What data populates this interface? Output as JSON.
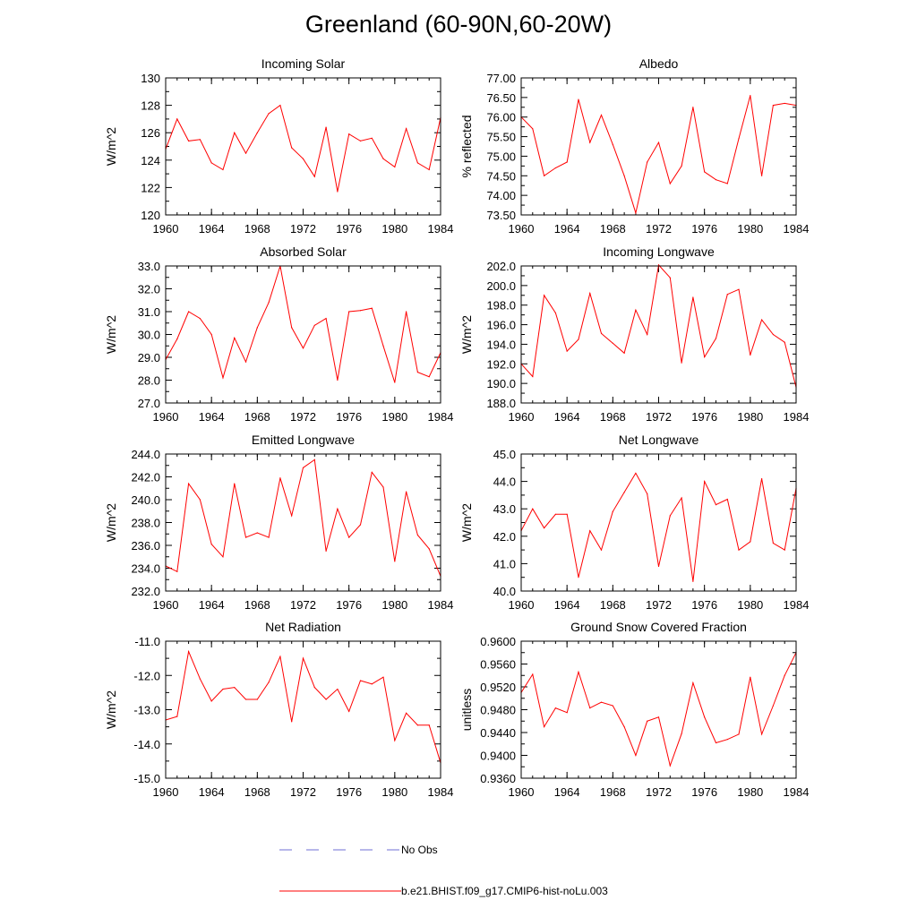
{
  "title": "Greenland (60-90N,60-20W)",
  "x_years": [
    1960,
    1961,
    1962,
    1963,
    1964,
    1965,
    1966,
    1967,
    1968,
    1969,
    1970,
    1971,
    1972,
    1973,
    1974,
    1975,
    1976,
    1977,
    1978,
    1979,
    1980,
    1981,
    1982,
    1983,
    1984
  ],
  "legend": {
    "obs_label": "No Obs",
    "model_label": "b.e21.BHIST.f09_g17.CMIP6-hist-noLu.003",
    "obs_color": "#6f6fd6",
    "model_color": "#ff0000"
  },
  "chart_data": [
    {
      "type": "line",
      "title": "Incoming Solar",
      "ylabel": "W/m^2",
      "ylim": [
        120,
        130
      ],
      "yticks": [
        "120",
        "122",
        "124",
        "126",
        "128",
        "130"
      ],
      "xticks": [
        "1960",
        "1964",
        "1968",
        "1972",
        "1976",
        "1980",
        "1984"
      ],
      "series": [
        {
          "values": [
            124.8,
            127.0,
            125.4,
            125.5,
            123.8,
            123.3,
            126.0,
            124.5,
            126.0,
            127.4,
            128.0,
            124.9,
            124.1,
            122.8,
            126.4,
            121.7,
            125.9,
            125.4,
            125.6,
            124.1,
            123.5,
            126.3,
            123.8,
            123.3,
            127.1
          ]
        }
      ]
    },
    {
      "type": "line",
      "title": "Albedo",
      "ylabel": "% reflected",
      "ylim": [
        73.5,
        77.0
      ],
      "yticks": [
        "73.50",
        "74.00",
        "74.50",
        "75.00",
        "75.50",
        "76.00",
        "76.50",
        "77.00"
      ],
      "xticks": [
        "1960",
        "1964",
        "1968",
        "1972",
        "1976",
        "1980",
        "1984"
      ],
      "series": [
        {
          "values": [
            76.0,
            75.7,
            74.5,
            74.7,
            74.85,
            76.45,
            75.35,
            76.05,
            75.3,
            74.5,
            73.55,
            74.85,
            75.35,
            74.3,
            74.75,
            76.25,
            74.6,
            74.4,
            74.3,
            75.45,
            76.55,
            74.5,
            76.3,
            76.35,
            76.3
          ]
        }
      ]
    },
    {
      "type": "line",
      "title": "Absorbed Solar",
      "ylabel": "W/m^2",
      "ylim": [
        27.0,
        33.0
      ],
      "yticks": [
        "27.0",
        "28.0",
        "29.0",
        "30.0",
        "31.0",
        "32.0",
        "33.0"
      ],
      "xticks": [
        "1960",
        "1964",
        "1968",
        "1972",
        "1976",
        "1980",
        "1984"
      ],
      "series": [
        {
          "values": [
            28.9,
            29.8,
            31.0,
            30.7,
            30.0,
            28.1,
            29.85,
            28.8,
            30.3,
            31.4,
            33.0,
            30.3,
            29.4,
            30.4,
            30.7,
            28.0,
            31.0,
            31.05,
            31.15,
            29.5,
            27.9,
            31.0,
            28.35,
            28.15,
            29.2
          ]
        }
      ]
    },
    {
      "type": "line",
      "title": "Incoming Longwave",
      "ylabel": "W/m^2",
      "ylim": [
        188.0,
        202.0
      ],
      "yticks": [
        "188.0",
        "190.0",
        "192.0",
        "194.0",
        "196.0",
        "198.0",
        "200.0",
        "202.0"
      ],
      "xticks": [
        "1960",
        "1964",
        "1968",
        "1972",
        "1976",
        "1980",
        "1984"
      ],
      "series": [
        {
          "values": [
            192.0,
            190.7,
            199.0,
            197.2,
            193.3,
            194.5,
            199.2,
            195.1,
            194.1,
            193.1,
            197.5,
            195.0,
            202.1,
            200.8,
            192.1,
            198.8,
            192.7,
            194.6,
            199.1,
            199.6,
            192.9,
            196.5,
            195.0,
            194.2,
            189.6
          ]
        }
      ]
    },
    {
      "type": "line",
      "title": "Emitted Longwave",
      "ylabel": "W/m^2",
      "ylim": [
        232.0,
        244.0
      ],
      "yticks": [
        "232.0",
        "234.0",
        "236.0",
        "238.0",
        "240.0",
        "242.0",
        "244.0"
      ],
      "xticks": [
        "1960",
        "1964",
        "1968",
        "1972",
        "1976",
        "1980",
        "1984"
      ],
      "series": [
        {
          "values": [
            234.2,
            233.7,
            241.4,
            240.0,
            236.1,
            235.0,
            241.4,
            236.7,
            237.1,
            236.7,
            241.9,
            238.6,
            242.8,
            243.5,
            235.5,
            239.2,
            236.7,
            237.8,
            242.4,
            241.1,
            234.6,
            240.7,
            236.9,
            235.7,
            233.3
          ]
        }
      ]
    },
    {
      "type": "line",
      "title": "Net Longwave",
      "ylabel": "W/m^2",
      "ylim": [
        40.0,
        45.0
      ],
      "yticks": [
        "40.0",
        "41.0",
        "42.0",
        "43.0",
        "44.0",
        "45.0"
      ],
      "xticks": [
        "1960",
        "1964",
        "1968",
        "1972",
        "1976",
        "1980",
        "1984"
      ],
      "series": [
        {
          "values": [
            42.2,
            43.0,
            42.3,
            42.8,
            42.8,
            40.5,
            42.2,
            41.5,
            42.9,
            43.6,
            44.3,
            43.55,
            40.9,
            42.75,
            43.4,
            40.35,
            44.0,
            43.15,
            43.35,
            41.5,
            41.8,
            44.1,
            41.75,
            41.5,
            43.75
          ]
        }
      ]
    },
    {
      "type": "line",
      "title": "Net Radiation",
      "ylabel": "W/m^2",
      "ylim": [
        -15.0,
        -11.0
      ],
      "yticks": [
        "-15.0",
        "-14.0",
        "-13.0",
        "-12.0",
        "-11.0"
      ],
      "xticks": [
        "1960",
        "1964",
        "1968",
        "1972",
        "1976",
        "1980",
        "1984"
      ],
      "series": [
        {
          "values": [
            -13.3,
            -13.2,
            -11.3,
            -12.1,
            -12.75,
            -12.4,
            -12.35,
            -12.7,
            -12.7,
            -12.2,
            -11.45,
            -13.35,
            -11.5,
            -12.35,
            -12.7,
            -12.4,
            -13.05,
            -12.15,
            -12.25,
            -12.05,
            -13.9,
            -13.1,
            -13.45,
            -13.45,
            -14.55
          ]
        }
      ]
    },
    {
      "type": "line",
      "title": "Ground Snow Covered Fraction",
      "ylabel": "unitless",
      "ylim": [
        0.936,
        0.96
      ],
      "yticks": [
        "0.9360",
        "0.9400",
        "0.9440",
        "0.9480",
        "0.9520",
        "0.9560",
        "0.9600"
      ],
      "xticks": [
        "1960",
        "1964",
        "1968",
        "1972",
        "1976",
        "1980",
        "1984"
      ],
      "series": [
        {
          "values": [
            0.951,
            0.9542,
            0.945,
            0.9483,
            0.9475,
            0.9546,
            0.9483,
            0.9493,
            0.9487,
            0.945,
            0.94,
            0.946,
            0.9467,
            0.9382,
            0.9438,
            0.9527,
            0.9467,
            0.9422,
            0.9428,
            0.9437,
            0.9537,
            0.9437,
            0.9487,
            0.954,
            0.958
          ]
        }
      ]
    }
  ]
}
